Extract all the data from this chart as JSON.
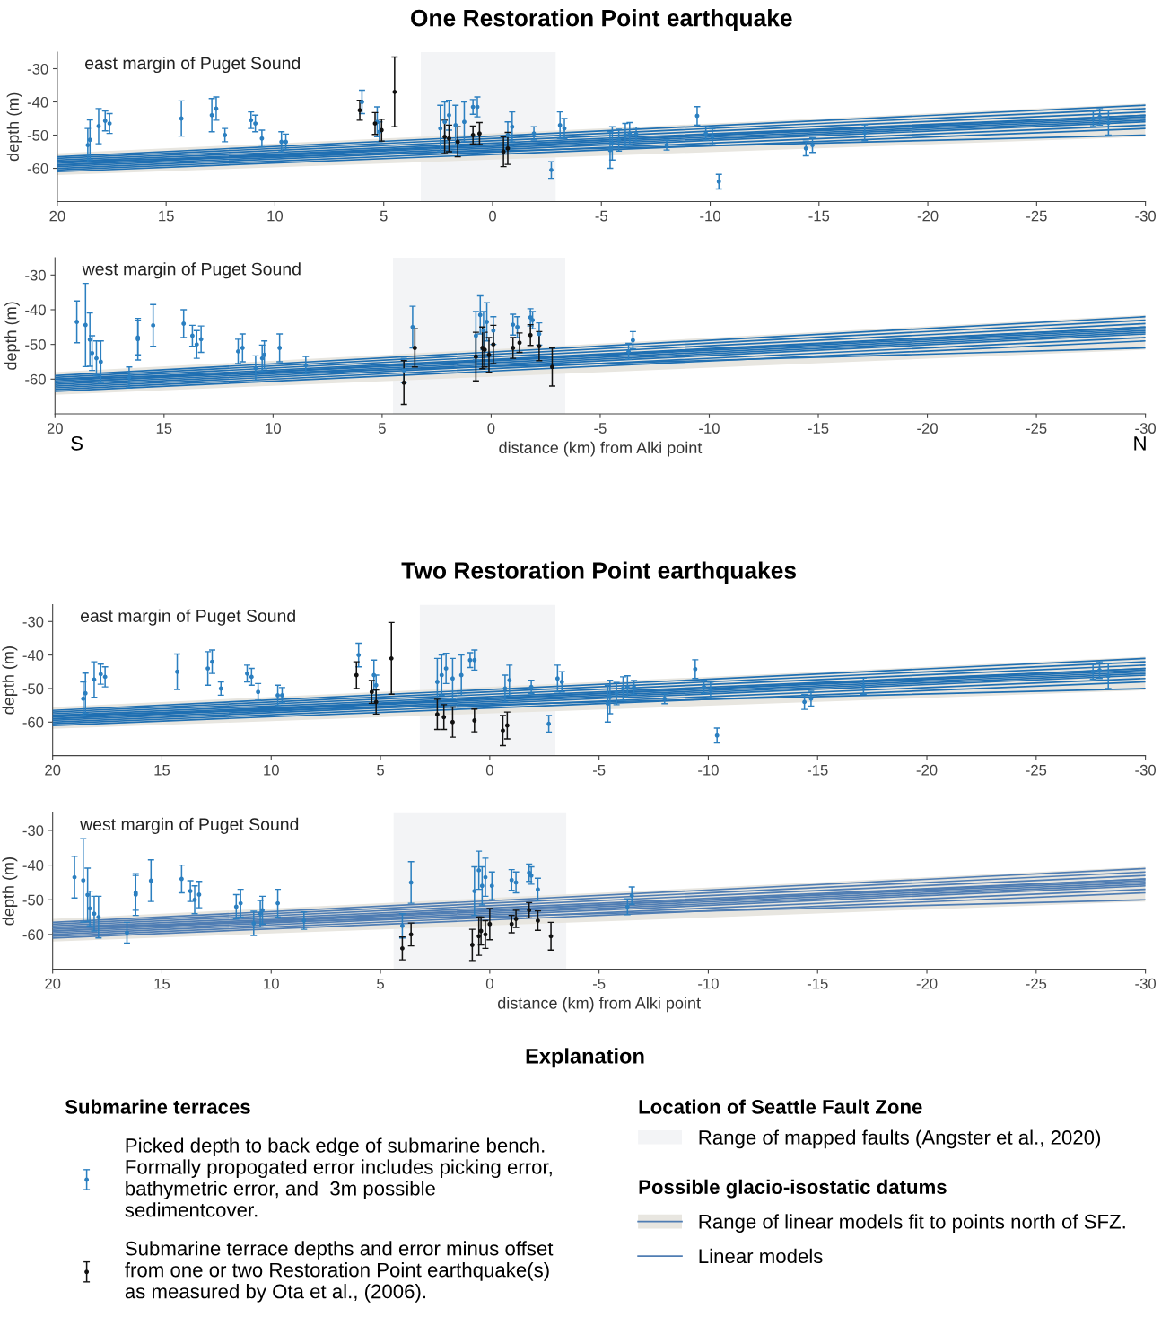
{
  "chart_data": [
    {
      "type": "scatter",
      "title": "One Restoration Point earthquake",
      "ylabel": "depth (m)",
      "annotations": [
        "east margin of Puget Sound"
      ],
      "xlim": [
        20,
        -30
      ],
      "xticks": [
        20,
        15,
        10,
        5,
        0,
        -5,
        -10,
        -15,
        -20,
        -25,
        -30
      ],
      "ylim": [
        -70,
        -25
      ],
      "yticks": [
        -30,
        -40,
        -50,
        -60
      ],
      "bands": [
        {
          "axis": "x",
          "from": 3.3,
          "to": -2.9,
          "color": "#f3f4f6"
        }
      ],
      "series": [
        {
          "type": "line",
          "x": [
            20,
            -30
          ],
          "values": [
            -56.5,
            -41
          ],
          "lower": [
            -62,
            -50.5
          ],
          "upper": [
            -55.5,
            -40.5
          ],
          "color": "#1f6fb2"
        },
        {
          "type": "line",
          "x": [
            20,
            -30
          ],
          "values": [
            -57,
            -42
          ],
          "color": "#1f6fb2"
        },
        {
          "type": "line",
          "x": [
            20,
            -30
          ],
          "values": [
            -57.5,
            -43
          ],
          "color": "#1f6fb2"
        },
        {
          "type": "line",
          "x": [
            20,
            -30
          ],
          "values": [
            -58,
            -44
          ],
          "color": "#1f6fb2"
        },
        {
          "type": "line",
          "x": [
            20,
            -30
          ],
          "values": [
            -58.5,
            -44.5
          ],
          "color": "#1f6fb2"
        },
        {
          "type": "line",
          "x": [
            20,
            -30
          ],
          "values": [
            -59,
            -45
          ],
          "color": "#1f6fb2"
        },
        {
          "type": "line",
          "x": [
            20,
            -30
          ],
          "values": [
            -59.5,
            -45.5
          ],
          "color": "#1f6fb2"
        },
        {
          "type": "line",
          "x": [
            20,
            -30
          ],
          "values": [
            -60,
            -46
          ],
          "color": "#1f6fb2"
        },
        {
          "type": "line",
          "x": [
            20,
            -30
          ],
          "values": [
            -60.5,
            -47
          ],
          "color": "#1f6fb2"
        },
        {
          "type": "line",
          "x": [
            20,
            -30
          ],
          "values": [
            -61,
            -48
          ],
          "color": "#1f6fb2"
        },
        {
          "type": "line",
          "x": [
            20,
            -30
          ],
          "values": [
            -58,
            -50
          ],
          "color": "#1f6fb2"
        },
        {
          "type": "line",
          "x": [
            20,
            -30
          ],
          "values": [
            -59,
            -44
          ],
          "color": "#1f6fb2"
        },
        {
          "type": "scatter",
          "marker": "circle",
          "color": "#2b7fc0",
          "x": [
            18.6,
            18.5,
            18.1,
            17.8,
            17.6,
            14.3,
            12.9,
            12.7,
            12.3,
            11.1,
            10.9,
            10.6,
            9.7,
            9.5,
            6.0,
            5.3,
            5.2,
            2.4,
            2.2,
            2.0,
            1.7,
            1.3,
            0.9,
            0.7,
            -0.7,
            -0.9,
            -1.9,
            -2.7,
            -3.1,
            -3.3,
            -5.4,
            -5.5,
            -5.8,
            -6.1,
            -6.3,
            -6.6,
            -8.0,
            -9.4,
            -9.8,
            -10.1,
            -10.4,
            -14.4,
            -14.7,
            -17.1,
            -27.6,
            -27.9,
            -28.3
          ],
          "values": [
            -53,
            -51.4,
            -47.3,
            -45.7,
            -46.5,
            -45,
            -44,
            -42,
            -50,
            -45.5,
            -46.5,
            -51,
            -52,
            -52,
            -40,
            -46,
            -49,
            -48,
            -46,
            -44,
            -47,
            -46,
            -41.5,
            -41.5,
            -50,
            -47.5,
            -49.5,
            -60.5,
            -47,
            -48,
            -54.5,
            -52.5,
            -51.5,
            -50,
            -49.5,
            -49.7,
            -53,
            -44.2,
            -49.5,
            -50.5,
            -64,
            -54,
            -53,
            -49.3,
            -45,
            -44.5,
            -46.3
          ],
          "errors": [
            5,
            6,
            5.3,
            3,
            3,
            5.3,
            5,
            3.5,
            2,
            2.5,
            2.5,
            2.5,
            3,
            2.3,
            3.5,
            4.5,
            3,
            7,
            6,
            4.5,
            6,
            6,
            2.2,
            3,
            4,
            4.5,
            2,
            2.5,
            4,
            3,
            5.5,
            5,
            3.3,
            3.5,
            3.3,
            2.1,
            1.5,
            2.8,
            2,
            2.4,
            2.2,
            2.2,
            2.2,
            2.4,
            2.2,
            2.5,
            3.7
          ]
        },
        {
          "type": "scatter",
          "marker": "circle",
          "color": "#111111",
          "x": [
            6.1,
            5.4,
            5.1,
            4.5,
            2.2,
            2.0,
            1.6,
            0.9,
            0.6,
            -0.5,
            -0.7
          ],
          "values": [
            -42.5,
            -46.5,
            -48.5,
            -37,
            -50.5,
            -51,
            -52,
            -50,
            -49.5,
            -55,
            -54
          ],
          "errors": [
            3,
            3.3,
            3.3,
            10.5,
            5,
            4,
            4.5,
            2.7,
            3.3,
            4.5,
            4.8
          ]
        }
      ]
    },
    {
      "type": "scatter",
      "ylabel": "depth (m)",
      "xlabel": "distance (km) from Alki point",
      "annotations": [
        "west margin of Puget Sound",
        "S",
        "N"
      ],
      "xlim": [
        20,
        -30
      ],
      "xticks": [
        20,
        15,
        10,
        5,
        0,
        -5,
        -10,
        -15,
        -20,
        -25,
        -30
      ],
      "ylim": [
        -70,
        -25
      ],
      "yticks": [
        -30,
        -40,
        -50,
        -60
      ],
      "bands": [
        {
          "axis": "x",
          "from": 4.5,
          "to": -3.4,
          "color": "#f3f4f6"
        }
      ],
      "series": [
        {
          "type": "line",
          "x": [
            20,
            -30
          ],
          "values": [
            -59,
            -42
          ],
          "lower": [
            -64.5,
            -51.5
          ],
          "upper": [
            -58,
            -41.5
          ],
          "color": "#1f6fb2"
        },
        {
          "type": "line",
          "x": [
            20,
            -30
          ],
          "values": [
            -59.5,
            -43
          ],
          "color": "#1f6fb2"
        },
        {
          "type": "line",
          "x": [
            20,
            -30
          ],
          "values": [
            -60,
            -44
          ],
          "color": "#1f6fb2"
        },
        {
          "type": "line",
          "x": [
            20,
            -30
          ],
          "values": [
            -60.5,
            -45
          ],
          "color": "#1f6fb2"
        },
        {
          "type": "line",
          "x": [
            20,
            -30
          ],
          "values": [
            -61,
            -45.5
          ],
          "color": "#1f6fb2"
        },
        {
          "type": "line",
          "x": [
            20,
            -30
          ],
          "values": [
            -61.5,
            -46
          ],
          "color": "#1f6fb2"
        },
        {
          "type": "line",
          "x": [
            20,
            -30
          ],
          "values": [
            -62,
            -46.5
          ],
          "color": "#1f6fb2"
        },
        {
          "type": "line",
          "x": [
            20,
            -30
          ],
          "values": [
            -62.5,
            -47
          ],
          "color": "#1f6fb2"
        },
        {
          "type": "line",
          "x": [
            20,
            -30
          ],
          "values": [
            -63,
            -48
          ],
          "color": "#1f6fb2"
        },
        {
          "type": "line",
          "x": [
            20,
            -30
          ],
          "values": [
            -63.5,
            -49
          ],
          "color": "#1f6fb2"
        },
        {
          "type": "line",
          "x": [
            20,
            -30
          ],
          "values": [
            -60,
            -51
          ],
          "color": "#1f6fb2"
        },
        {
          "type": "line",
          "x": [
            20,
            -30
          ],
          "values": [
            -61,
            -45
          ],
          "color": "#1f6fb2"
        },
        {
          "type": "scatter",
          "marker": "circle",
          "color": "#2b7fc0",
          "x": [
            19.0,
            18.6,
            18.4,
            18.3,
            18.1,
            17.9,
            16.6,
            16.2,
            16.2,
            15.5,
            14.1,
            13.7,
            13.5,
            13.3,
            11.6,
            11.4,
            10.8,
            10.5,
            10.4,
            9.7,
            8.5,
            3.6,
            4.0,
            0.7,
            0.5,
            0.35,
            0.2,
            -0.1,
            -1.0,
            -1.2,
            -1.8,
            -1.9,
            -2.2,
            -6.3,
            -6.5
          ],
          "values": [
            -43.5,
            -44.4,
            -48.6,
            -52.5,
            -54,
            -55,
            -59.5,
            -48.5,
            -48,
            -44.5,
            -44,
            -47.5,
            -50,
            -48.5,
            -52,
            -51,
            -56.8,
            -54,
            -53,
            -51,
            -56,
            -45,
            -57.5,
            -47.5,
            -41.5,
            -46,
            -43.5,
            -46,
            -44.3,
            -45,
            -42.2,
            -43,
            -47,
            -52,
            -48.8
          ],
          "errors": [
            6,
            12,
            7.7,
            5,
            5,
            6,
            3,
            6,
            5,
            6,
            4,
            3,
            4,
            3.8,
            3.5,
            4,
            3.5,
            3.8,
            4,
            4,
            2.5,
            6,
            3.5,
            7,
            5.5,
            5.5,
            5.5,
            4,
            3,
            3,
            2.5,
            2.5,
            3.2,
            2.3,
            2.5
          ]
        },
        {
          "type": "scatter",
          "marker": "circle",
          "color": "#111111",
          "x": [
            4.0,
            3.5,
            0.7,
            0.4,
            0.3,
            0.1,
            -0.1,
            -1.0,
            -1.3,
            -1.8,
            -2.2,
            -2.8
          ],
          "values": [
            -61,
            -51,
            -53.5,
            -51,
            -51.5,
            -53,
            -50,
            -51,
            -49.5,
            -47.3,
            -50.5,
            -56.5
          ],
          "errors": [
            6.3,
            5.5,
            7,
            6,
            5,
            5,
            5.5,
            3,
            2.8,
            3,
            4.2,
            5.5
          ]
        }
      ]
    },
    {
      "type": "scatter",
      "title": "Two Restoration Point earthquakes",
      "ylabel": "depth (m)",
      "annotations": [
        "east margin of Puget Sound"
      ],
      "xlim": [
        20,
        -30
      ],
      "xticks": [
        20,
        15,
        10,
        5,
        0,
        -5,
        -10,
        -15,
        -20,
        -25,
        -30
      ],
      "ylim": [
        -70,
        -25
      ],
      "yticks": [
        -30,
        -40,
        -50,
        -60
      ],
      "bands": [
        {
          "axis": "x",
          "from": 3.2,
          "to": -3.0,
          "color": "#f3f4f6"
        }
      ],
      "series": [
        {
          "type": "line",
          "x": [
            20,
            -30
          ],
          "values": [
            -56.5,
            -41
          ],
          "lower": [
            -62,
            -50.5
          ],
          "upper": [
            -55.5,
            -40.5
          ],
          "color": "#1f6fb2"
        },
        {
          "type": "line",
          "x": [
            20,
            -30
          ],
          "values": [
            -57,
            -42
          ],
          "color": "#1f6fb2"
        },
        {
          "type": "line",
          "x": [
            20,
            -30
          ],
          "values": [
            -57.5,
            -43
          ],
          "color": "#1f6fb2"
        },
        {
          "type": "line",
          "x": [
            20,
            -30
          ],
          "values": [
            -58,
            -44
          ],
          "color": "#1f6fb2"
        },
        {
          "type": "line",
          "x": [
            20,
            -30
          ],
          "values": [
            -58.5,
            -44.5
          ],
          "color": "#1f6fb2"
        },
        {
          "type": "line",
          "x": [
            20,
            -30
          ],
          "values": [
            -59,
            -45
          ],
          "color": "#1f6fb2"
        },
        {
          "type": "line",
          "x": [
            20,
            -30
          ],
          "values": [
            -59.5,
            -45.5
          ],
          "color": "#1f6fb2"
        },
        {
          "type": "line",
          "x": [
            20,
            -30
          ],
          "values": [
            -60,
            -46
          ],
          "color": "#1f6fb2"
        },
        {
          "type": "line",
          "x": [
            20,
            -30
          ],
          "values": [
            -60.5,
            -47
          ],
          "color": "#1f6fb2"
        },
        {
          "type": "line",
          "x": [
            20,
            -30
          ],
          "values": [
            -61,
            -48
          ],
          "color": "#1f6fb2"
        },
        {
          "type": "line",
          "x": [
            20,
            -30
          ],
          "values": [
            -58,
            -50
          ],
          "color": "#1f6fb2"
        },
        {
          "type": "line",
          "x": [
            20,
            -30
          ],
          "values": [
            -59,
            -44
          ],
          "color": "#1f6fb2"
        },
        {
          "type": "scatter",
          "marker": "circle",
          "color": "#2b7fc0",
          "x": [
            18.6,
            18.5,
            18.1,
            17.8,
            17.6,
            14.3,
            12.9,
            12.7,
            12.3,
            11.1,
            10.9,
            10.6,
            9.7,
            9.5,
            6.0,
            5.3,
            5.2,
            2.4,
            2.2,
            2.0,
            1.7,
            1.3,
            0.9,
            0.7,
            -0.7,
            -0.9,
            -1.9,
            -2.7,
            -3.1,
            -3.3,
            -5.4,
            -5.5,
            -5.8,
            -6.1,
            -6.3,
            -6.6,
            -8.0,
            -9.4,
            -9.8,
            -10.1,
            -10.4,
            -14.4,
            -14.7,
            -17.1,
            -27.6,
            -27.9,
            -28.3
          ],
          "values": [
            -53,
            -51.4,
            -47.3,
            -45.7,
            -46.5,
            -45,
            -44,
            -42,
            -50,
            -45.5,
            -46.5,
            -51,
            -52,
            -52,
            -40,
            -46,
            -49,
            -48,
            -46,
            -44,
            -47,
            -46,
            -41.5,
            -41.5,
            -50,
            -47.5,
            -49.5,
            -60.5,
            -47,
            -48,
            -54.5,
            -52.5,
            -51.5,
            -50,
            -49.5,
            -49.7,
            -53,
            -44.2,
            -49.5,
            -50.5,
            -64,
            -54,
            -53,
            -49.3,
            -45,
            -44.5,
            -46.3
          ],
          "errors": [
            5,
            6,
            5.3,
            3,
            3,
            5.3,
            5,
            3.5,
            2,
            2.5,
            2.5,
            2.5,
            3,
            2.3,
            3.5,
            4.5,
            3,
            7,
            6,
            4.5,
            6,
            6,
            2.2,
            3,
            4,
            4.5,
            2,
            2.5,
            4,
            3,
            5.5,
            5,
            3.3,
            3.5,
            3.3,
            2.1,
            1.5,
            2.8,
            2,
            2.4,
            2.2,
            2.2,
            2.2,
            2.4,
            2.2,
            2.5,
            3.7
          ]
        },
        {
          "type": "scatter",
          "marker": "circle",
          "color": "#111111",
          "x": [
            6.1,
            5.4,
            5.2,
            4.5,
            2.4,
            2.1,
            1.7,
            0.7,
            -0.6,
            -0.8
          ],
          "values": [
            -46,
            -51,
            -54,
            -41,
            -57.7,
            -58.5,
            -60,
            -59.5,
            -62.5,
            -61
          ],
          "errors": [
            4,
            3.4,
            3.6,
            10.7,
            4.5,
            3.7,
            4.5,
            3.4,
            4.5,
            4
          ]
        }
      ]
    },
    {
      "type": "scatter",
      "ylabel": "depth (m)",
      "xlabel": "distance (km) from Alki point",
      "annotations": [
        "west margin of Puget Sound"
      ],
      "xlim": [
        20,
        -30
      ],
      "xticks": [
        20,
        15,
        10,
        5,
        0,
        -5,
        -10,
        -15,
        -20,
        -25,
        -30
      ],
      "ylim": [
        -70,
        -25
      ],
      "yticks": [
        -30,
        -40,
        -50,
        -60
      ],
      "legend": "bottom",
      "bands": [
        {
          "axis": "x",
          "from": 4.4,
          "to": -3.5,
          "color": "#f3f4f6",
          "label": "Range of mapped faults (Angster et al., 2020)"
        }
      ],
      "series": [
        {
          "type": "line",
          "name": "Range of linear models fit to points north of SFZ.",
          "x": [
            20,
            -30
          ],
          "values": [
            -56.5,
            -41
          ],
          "lower": [
            -62,
            -50.5
          ],
          "upper": [
            -55.5,
            -40.5
          ],
          "color": "#4f7db3"
        },
        {
          "type": "line",
          "name": "Linear models",
          "x": [
            20,
            -30
          ],
          "values": [
            -57,
            -42
          ],
          "color": "#4f7db3"
        },
        {
          "type": "line",
          "x": [
            20,
            -30
          ],
          "values": [
            -57.5,
            -43
          ],
          "color": "#4f7db3"
        },
        {
          "type": "line",
          "x": [
            20,
            -30
          ],
          "values": [
            -58,
            -44
          ],
          "color": "#4f7db3"
        },
        {
          "type": "line",
          "x": [
            20,
            -30
          ],
          "values": [
            -58.5,
            -44.5
          ],
          "color": "#4f7db3"
        },
        {
          "type": "line",
          "x": [
            20,
            -30
          ],
          "values": [
            -59,
            -45
          ],
          "color": "#4f7db3"
        },
        {
          "type": "line",
          "x": [
            20,
            -30
          ],
          "values": [
            -59.5,
            -45.5
          ],
          "color": "#4f7db3"
        },
        {
          "type": "line",
          "x": [
            20,
            -30
          ],
          "values": [
            -60,
            -46
          ],
          "color": "#4f7db3"
        },
        {
          "type": "line",
          "x": [
            20,
            -30
          ],
          "values": [
            -60.5,
            -47
          ],
          "color": "#4f7db3"
        },
        {
          "type": "line",
          "x": [
            20,
            -30
          ],
          "values": [
            -61,
            -48
          ],
          "color": "#4f7db3"
        },
        {
          "type": "line",
          "x": [
            20,
            -30
          ],
          "values": [
            -58,
            -50
          ],
          "color": "#4f7db3"
        },
        {
          "type": "line",
          "x": [
            20,
            -30
          ],
          "values": [
            -59,
            -44
          ],
          "color": "#4f7db3"
        },
        {
          "type": "scatter",
          "marker": "circle",
          "name": "Picked depth to back edge of submarine bench.\nFormally propogated error includes picking error,\nbathymetric error, and  3m possible\nsedimentcover.",
          "color": "#2b7fc0",
          "x": [
            19.0,
            18.6,
            18.4,
            18.3,
            18.1,
            17.9,
            16.6,
            16.2,
            16.2,
            15.5,
            14.1,
            13.7,
            13.5,
            13.3,
            11.6,
            11.4,
            10.8,
            10.5,
            10.4,
            9.7,
            8.5,
            3.6,
            4.0,
            0.7,
            0.5,
            0.35,
            0.2,
            -0.1,
            -1.0,
            -1.2,
            -1.8,
            -1.9,
            -2.2,
            -6.3,
            -6.5
          ],
          "values": [
            -43.5,
            -44.4,
            -48.6,
            -52.5,
            -54,
            -55,
            -59.5,
            -48.5,
            -48,
            -44.5,
            -44,
            -47.5,
            -50,
            -48.5,
            -52,
            -51,
            -56.8,
            -54,
            -53,
            -51,
            -56,
            -45,
            -57.5,
            -47.5,
            -41.5,
            -46,
            -43.5,
            -46,
            -44.3,
            -45,
            -42.2,
            -43,
            -47,
            -52,
            -48.8
          ],
          "errors": [
            6,
            12,
            7.7,
            5,
            5,
            6,
            3,
            6,
            5,
            6,
            4,
            3,
            4,
            3.8,
            3.5,
            4,
            3.5,
            3.8,
            4,
            4,
            2.5,
            6,
            3.5,
            7,
            5.5,
            5.5,
            5.5,
            4,
            3,
            3,
            2.5,
            2.5,
            3.2,
            2.3,
            2.5
          ]
        },
        {
          "type": "scatter",
          "marker": "circle",
          "name": "Submarine terrace depths and error minus offset\nfrom one or two Restoration Point earthquake(s)\nas measured by Ota et al., (2006).",
          "color": "#111111",
          "x": [
            4.0,
            3.6,
            0.8,
            0.5,
            0.4,
            0.2,
            0,
            -1.0,
            -1.2,
            -1.8,
            -2.2,
            -2.8
          ],
          "values": [
            -64,
            -60,
            -63,
            -60.5,
            -59,
            -60,
            -57,
            -57,
            -55.5,
            -53,
            -56,
            -60.5
          ],
          "errors": [
            3.3,
            3.3,
            4.5,
            5.5,
            4,
            4,
            4.5,
            2.5,
            2.5,
            2.2,
            2.8,
            4
          ]
        }
      ]
    },
    {
      "type": "other",
      "title": "Explanation",
      "annotations": [
        "Submarine terraces",
        "Location of Seattle Fault Zone",
        "Possible glacio-isostatic datums"
      ]
    }
  ]
}
